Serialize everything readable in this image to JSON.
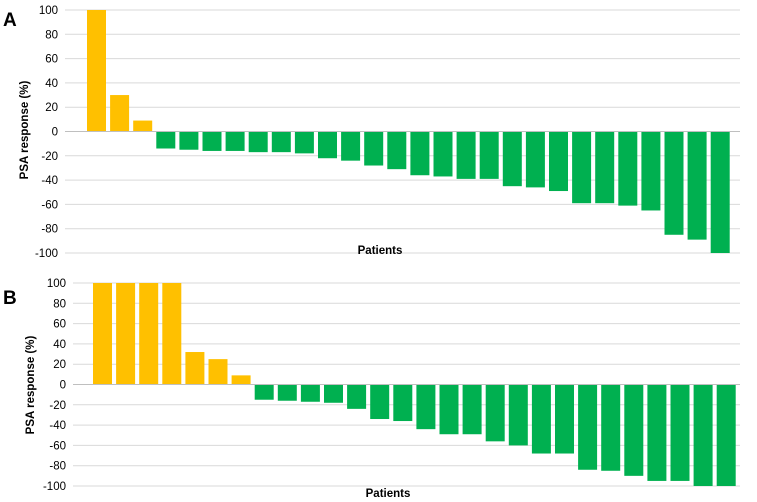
{
  "colors": {
    "positive": "#FFC000",
    "negative": "#00B050",
    "grid": "#D9D9D9",
    "axis": "#BFBFBF"
  },
  "chart_data": [
    {
      "type": "bar",
      "panel_label": "A",
      "xlabel": "Patients",
      "ylabel": "PSA response (%)",
      "ylim": [
        -100,
        100
      ],
      "yticks": [
        100,
        80,
        60,
        40,
        20,
        0,
        -20,
        -40,
        -60,
        -80,
        -100
      ],
      "grid": true,
      "values": [
        100,
        30,
        9,
        -14,
        -15,
        -16,
        -16,
        -17,
        -17,
        -18,
        -22,
        -24,
        -28,
        -31,
        -36,
        -37,
        -39,
        -39,
        -45,
        -46,
        -49,
        -59,
        -59,
        -61,
        -65,
        -85,
        -89,
        -100
      ]
    },
    {
      "type": "bar",
      "panel_label": "B",
      "xlabel": "Patients",
      "ylabel": "PSA response (%)",
      "ylim": [
        -100,
        100
      ],
      "yticks": [
        100,
        80,
        60,
        40,
        20,
        0,
        -20,
        -40,
        -60,
        -80,
        -100
      ],
      "grid": true,
      "values": [
        100,
        100,
        100,
        100,
        32,
        25,
        9,
        -15,
        -16,
        -17,
        -18,
        -24,
        -34,
        -36,
        -44,
        -49,
        -49,
        -56,
        -60,
        -68,
        -68,
        -84,
        -85,
        -90,
        -95,
        -95,
        -100,
        -100
      ]
    }
  ]
}
